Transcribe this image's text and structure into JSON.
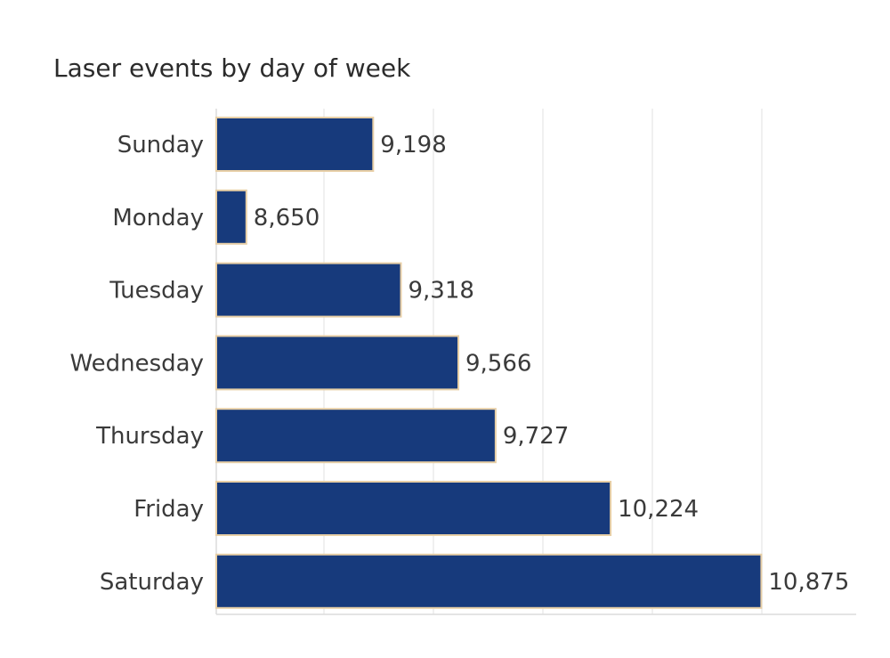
{
  "chart_data": {
    "type": "bar",
    "orientation": "horizontal",
    "title": "Laser events by day of week",
    "categories": [
      "Sunday",
      "Monday",
      "Tuesday",
      "Wednesday",
      "Thursday",
      "Friday",
      "Saturday"
    ],
    "values": [
      9198,
      8650,
      9318,
      9566,
      9727,
      10224,
      10875
    ],
    "value_labels": [
      "9,198",
      "8,650",
      "9,318",
      "9,566",
      "9,727",
      "10,224",
      "10,875"
    ],
    "xlim": [
      8520,
      11285
    ],
    "grid": true,
    "colors": {
      "bar": "#173a7c",
      "bar_outline": "#e8cfa6"
    }
  }
}
